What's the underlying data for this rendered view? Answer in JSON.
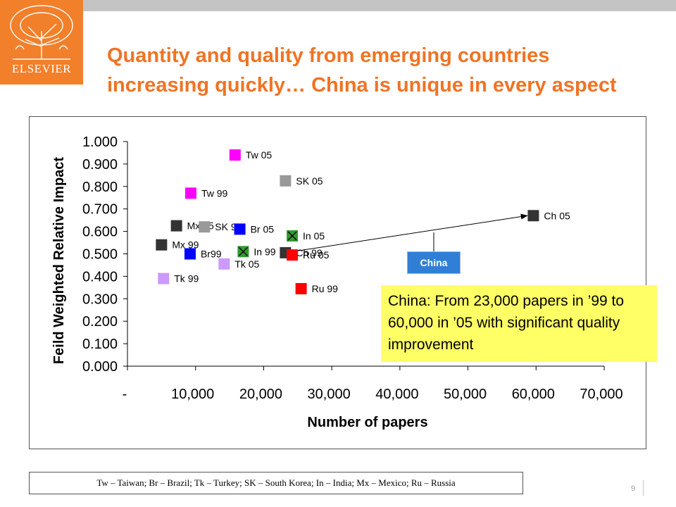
{
  "slide": {
    "title_line1": "Quantity and quality from emerging countries",
    "title_line2": "increasing quickly… China is unique in every aspect",
    "logo_text": "ELSEVIER",
    "callout": "China: From 23,000 papers in ’99 to 60,000 in ’05 with significant quality improvement",
    "china_label": "China",
    "footnote": "Tw – Taiwan; Br – Brazil; Tk – Turkey; SK – South Korea; In – India; Mx – Mexico; Ru – Russia",
    "page_number": "9"
  },
  "colors": {
    "accent": "#f07324",
    "logo_bg": "#f27f2a",
    "callout_bg": "#ffff66",
    "china_label_bg": "#2f7fd6"
  },
  "chart_data": {
    "type": "scatter",
    "xlabel": "Number of papers",
    "ylabel": "Feild Weighted Relative Impact",
    "xlim": [
      0,
      70000
    ],
    "ylim": [
      0,
      1.0
    ],
    "xticks": [
      0,
      10000,
      20000,
      30000,
      40000,
      50000,
      60000,
      70000
    ],
    "xtick_labels": [
      "-",
      "10,000",
      "20,000",
      "30,000",
      "40,000",
      "50,000",
      "60,000",
      "70,000"
    ],
    "yticks": [
      0,
      0.1,
      0.2,
      0.3,
      0.4,
      0.5,
      0.6,
      0.7,
      0.8,
      0.9,
      1.0
    ],
    "ytick_labels": [
      "0.000",
      "0.100",
      "0.200",
      "0.300",
      "0.400",
      "0.500",
      "0.600",
      "0.700",
      "0.800",
      "0.900",
      "1.000"
    ],
    "grid": false,
    "points": [
      {
        "label": "Tw 05",
        "x": 15800,
        "y": 0.94,
        "color": "#ff00ff"
      },
      {
        "label": "SK 05",
        "x": 23200,
        "y": 0.825,
        "color": "#999999"
      },
      {
        "label": "Tw 99",
        "x": 9300,
        "y": 0.77,
        "color": "#ff00ff"
      },
      {
        "label": "Ch 05",
        "x": 59600,
        "y": 0.67,
        "color": "#333333"
      },
      {
        "label": "Mx 05",
        "x": 7200,
        "y": 0.625,
        "color": "#333333"
      },
      {
        "label": "SK 99",
        "x": 11300,
        "y": 0.62,
        "color": "#999999"
      },
      {
        "label": "Br 05",
        "x": 16500,
        "y": 0.61,
        "color": "#0000ff"
      },
      {
        "label": "In 05",
        "x": 24200,
        "y": 0.58,
        "color": "#339933",
        "marker": "x"
      },
      {
        "label": "Mx 99",
        "x": 5000,
        "y": 0.54,
        "color": "#333333"
      },
      {
        "label": "Br99",
        "x": 9200,
        "y": 0.5,
        "color": "#0000ff"
      },
      {
        "label": "In 99",
        "x": 17000,
        "y": 0.51,
        "color": "#339933",
        "marker": "x"
      },
      {
        "label": "Ch 99",
        "x": 23200,
        "y": 0.505,
        "color": "#333333"
      },
      {
        "label": "Ru 05",
        "x": 24200,
        "y": 0.495,
        "color": "#ff0000"
      },
      {
        "label": "Tk 05",
        "x": 14200,
        "y": 0.455,
        "color": "#cc99ff"
      },
      {
        "label": "Tk 99",
        "x": 5300,
        "y": 0.39,
        "color": "#cc99ff"
      },
      {
        "label": "Ru 99",
        "x": 25500,
        "y": 0.345,
        "color": "#ff0000"
      }
    ],
    "arrow": {
      "from_x": 23200,
      "from_y": 0.505,
      "to_x": 58700,
      "to_y": 0.67
    }
  }
}
